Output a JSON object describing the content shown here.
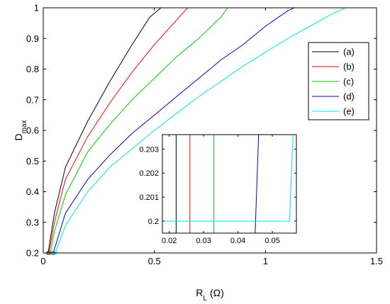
{
  "chart_data": {
    "type": "line",
    "xlabel": {
      "main": "R",
      "sub": "L",
      "unit": "(Ω)"
    },
    "ylabel": {
      "main": "D",
      "sub": "max"
    },
    "xlim": [
      0,
      1.5
    ],
    "ylim": [
      0.2,
      1.0
    ],
    "x_ticks": [
      0,
      0.5,
      1,
      1.5
    ],
    "x_tick_labels": [
      "0",
      "0.5",
      "1",
      "1.5"
    ],
    "y_ticks": [
      0.2,
      0.3,
      0.4,
      0.5,
      0.6,
      0.7,
      0.8,
      0.9,
      1
    ],
    "y_tick_labels": [
      "0.2",
      "0.3",
      "0.4",
      "0.5",
      "0.6",
      "0.7",
      "0.8",
      "0.9",
      "1"
    ],
    "grid": false,
    "legend_position": "right",
    "series": [
      {
        "name": "(a)",
        "color": "#000000",
        "points": [
          [
            0.022,
            0.2
          ],
          [
            0.05,
            0.33
          ],
          [
            0.1,
            0.48
          ],
          [
            0.2,
            0.63
          ],
          [
            0.3,
            0.76
          ],
          [
            0.4,
            0.88
          ],
          [
            0.48,
            0.97
          ],
          [
            0.53,
            1.0
          ],
          [
            1.5,
            1.0
          ]
        ]
      },
      {
        "name": "(b)",
        "color": "#ff0000",
        "points": [
          [
            0.026,
            0.2
          ],
          [
            0.05,
            0.3
          ],
          [
            0.1,
            0.44
          ],
          [
            0.2,
            0.58
          ],
          [
            0.3,
            0.69
          ],
          [
            0.4,
            0.79
          ],
          [
            0.5,
            0.88
          ],
          [
            0.6,
            0.96
          ],
          [
            0.65,
            1.0
          ],
          [
            1.5,
            1.0
          ]
        ]
      },
      {
        "name": "(c)",
        "color": "#00cc00",
        "points": [
          [
            0.033,
            0.2
          ],
          [
            0.05,
            0.27
          ],
          [
            0.1,
            0.39
          ],
          [
            0.2,
            0.53
          ],
          [
            0.3,
            0.62
          ],
          [
            0.4,
            0.7
          ],
          [
            0.5,
            0.77
          ],
          [
            0.6,
            0.84
          ],
          [
            0.7,
            0.9
          ],
          [
            0.8,
            0.97
          ],
          [
            0.83,
            1.0
          ],
          [
            1.5,
            1.0
          ]
        ]
      },
      {
        "name": "(d)",
        "color": "#0000cc",
        "points": [
          [
            0.045,
            0.2
          ],
          [
            0.1,
            0.33
          ],
          [
            0.2,
            0.44
          ],
          [
            0.3,
            0.52
          ],
          [
            0.4,
            0.59
          ],
          [
            0.5,
            0.65
          ],
          [
            0.6,
            0.71
          ],
          [
            0.7,
            0.77
          ],
          [
            0.8,
            0.83
          ],
          [
            0.9,
            0.88
          ],
          [
            1.0,
            0.94
          ],
          [
            1.1,
            0.99
          ],
          [
            1.13,
            1.0
          ],
          [
            1.5,
            1.0
          ]
        ]
      },
      {
        "name": "(e)",
        "color": "#00e5e5",
        "points": [
          [
            0.0,
            0.2
          ],
          [
            0.055,
            0.2
          ],
          [
            0.1,
            0.29
          ],
          [
            0.2,
            0.4
          ],
          [
            0.3,
            0.48
          ],
          [
            0.4,
            0.54
          ],
          [
            0.5,
            0.6
          ],
          [
            0.6,
            0.655
          ],
          [
            0.7,
            0.71
          ],
          [
            0.8,
            0.76
          ],
          [
            0.9,
            0.81
          ],
          [
            1.0,
            0.855
          ],
          [
            1.1,
            0.9
          ],
          [
            1.2,
            0.94
          ],
          [
            1.3,
            0.98
          ],
          [
            1.36,
            1.0
          ],
          [
            1.5,
            1.0
          ]
        ]
      }
    ],
    "inset": {
      "xlim": [
        0.018,
        0.057
      ],
      "ylim": [
        0.1995,
        0.2036
      ],
      "x_ticks": [
        0.02,
        0.03,
        0.04,
        0.05
      ],
      "x_tick_labels": [
        "0.02",
        "0.03",
        "0.04",
        "0.05"
      ],
      "y_ticks": [
        0.2,
        0.201,
        0.202,
        0.203
      ],
      "y_tick_labels": [
        "0.2",
        "0.201",
        "0.202",
        "0.203"
      ],
      "series": [
        {
          "name": "(a)",
          "color": "#000000",
          "points": [
            [
              0.022,
              0.1995
            ],
            [
              0.022,
              0.2036
            ]
          ]
        },
        {
          "name": "(b)",
          "color": "#ff0000",
          "points": [
            [
              0.026,
              0.1995
            ],
            [
              0.026,
              0.2036
            ]
          ]
        },
        {
          "name": "(c)",
          "color": "#00cc00",
          "points": [
            [
              0.033,
              0.1995
            ],
            [
              0.033,
              0.2036
            ]
          ]
        },
        {
          "name": "(d)",
          "color": "#0000cc",
          "points": [
            [
              0.045,
              0.1995
            ],
            [
              0.046,
              0.2036
            ]
          ]
        },
        {
          "name": "(e)",
          "color": "#00e5e5",
          "points": [
            [
              0.018,
              0.2
            ],
            [
              0.055,
              0.2
            ],
            [
              0.056,
              0.2036
            ]
          ]
        }
      ]
    }
  }
}
